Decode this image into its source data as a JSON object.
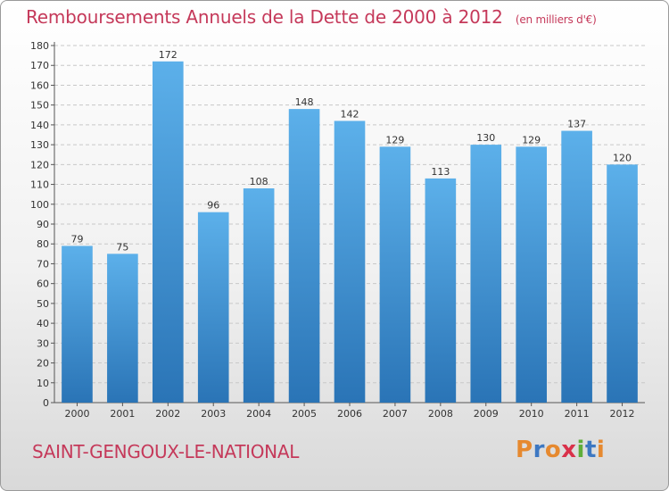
{
  "header": {
    "title": "Remboursements Annuels de la Dette de 2000 à 2012",
    "unit": "(en milliers d'€)"
  },
  "footer": {
    "commune": "SAINT-GENGOUX-LE-NATIONAL",
    "brand": "Proxiti",
    "brand_colors": [
      "#e6892f",
      "#3d78c2",
      "#e6892f",
      "#d9314a",
      "#5fae3a",
      "#3d78c2",
      "#e6892f"
    ]
  },
  "chart_data": {
    "type": "bar",
    "title": "Remboursements Annuels de la Dette de 2000 à 2012",
    "subtitle": "(en milliers d'€)",
    "xlabel": "",
    "ylabel": "",
    "categories": [
      "2000",
      "2001",
      "2002",
      "2003",
      "2004",
      "2005",
      "2006",
      "2007",
      "2008",
      "2009",
      "2010",
      "2011",
      "2012"
    ],
    "values": [
      79,
      75,
      172,
      96,
      108,
      148,
      142,
      129,
      113,
      130,
      129,
      137,
      120
    ],
    "ylim": [
      0,
      180
    ],
    "ytick_step": 10,
    "grid": true,
    "legend": "none",
    "colors": {
      "bar_top": "#5cb0ea",
      "bar_bottom": "#2a74b6",
      "grid": "#c8c8c8",
      "text": "#333333",
      "title": "#c5395a"
    }
  }
}
